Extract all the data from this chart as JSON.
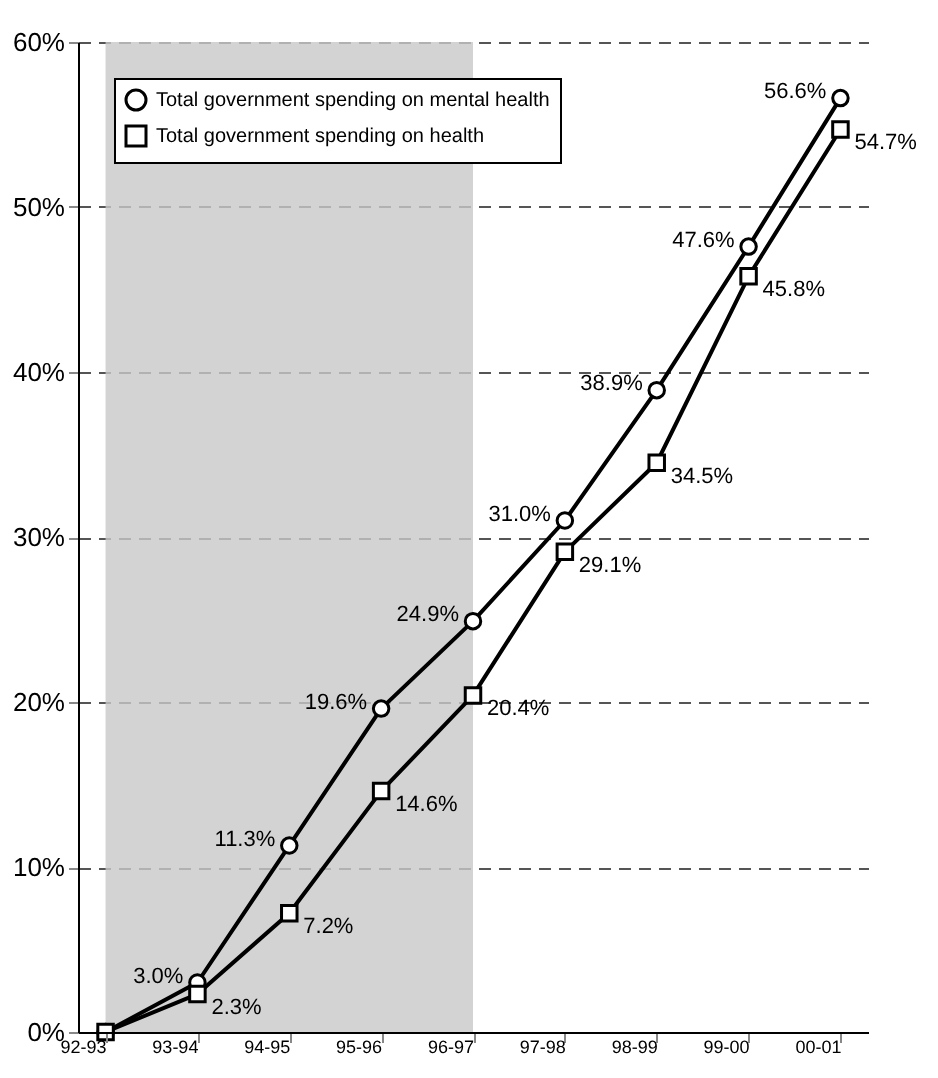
{
  "chart_data": {
    "type": "line",
    "categories": [
      "92-93",
      "93-94",
      "94-95",
      "95-96",
      "96-97",
      "97-98",
      "98-99",
      "99-00",
      "00-01"
    ],
    "series": [
      {
        "name": "Total government spending on mental health",
        "color": "#000000",
        "marker": "circle",
        "values": [
          0,
          3.0,
          11.3,
          19.6,
          24.9,
          31.0,
          38.9,
          47.6,
          56.6
        ],
        "value_labels": [
          null,
          "3.0%",
          "11.3%",
          "19.6%",
          "24.9%",
          "31.0%",
          "38.9%",
          "47.6%",
          "56.6%"
        ]
      },
      {
        "name": "Total government spending on health",
        "color": "#000000",
        "marker": "square",
        "values": [
          0,
          2.3,
          7.2,
          14.6,
          20.4,
          29.1,
          34.5,
          45.8,
          54.7
        ],
        "value_labels": [
          null,
          "2.3%",
          "7.2%",
          "14.6%",
          "20.4%",
          "29.1%",
          "34.5%",
          "45.8%",
          "54.7%"
        ]
      }
    ],
    "ylim": [
      0,
      60
    ],
    "yticks": [
      {
        "value": 0,
        "label": "0%"
      },
      {
        "value": 10,
        "label": "10%"
      },
      {
        "value": 20,
        "label": "20%"
      },
      {
        "value": 30,
        "label": "30%"
      },
      {
        "value": 40,
        "label": "40%"
      },
      {
        "value": 50,
        "label": "50%"
      },
      {
        "value": 60,
        "label": "60%"
      }
    ],
    "grid": "y",
    "legend": "top left",
    "line_style": "solid",
    "bands": [
      {
        "axis": "x",
        "from": "92-93",
        "to": "96-97",
        "color": "#c8c8c8"
      }
    ]
  }
}
